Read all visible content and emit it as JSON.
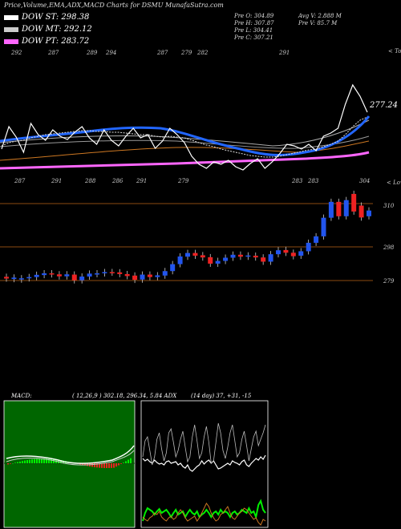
{
  "header": {
    "title": "Price,Volume,EMA,ADX,MACD Charts for DSMU MunafaSutra.com"
  },
  "legend": [
    {
      "label": "DOW ST: 298.38",
      "color": "#ffffff"
    },
    {
      "label": "DOW MT: 292.12",
      "color": "#cccccc"
    },
    {
      "label": "DOW PT: 283.72",
      "color": "#ff66ff"
    }
  ],
  "quote": {
    "open": "Pre O: 304.89",
    "high": "Pre H: 307.87",
    "low": "Pre L: 304.41",
    "close": "Pre C: 307.21",
    "avgvol": "Avg V: 2.888 M",
    "prevol": "Pre V: 85.7 M"
  },
  "top_panel": {
    "tops_label": "< Tops",
    "lows_label": "< Lows",
    "last_value": "277.24",
    "top_labels": [
      "292",
      "287",
      "289",
      "294",
      "287",
      "279",
      "282",
      "291"
    ],
    "low_labels": [
      "287",
      "291",
      "288",
      "286",
      "291",
      "279",
      "283",
      "283",
      "304"
    ]
  },
  "price_axis": {
    "ticks": [
      "310",
      "298",
      "279"
    ]
  },
  "macd": {
    "label": "MACD:",
    "values": "( 12,26,9 ) 302.18, 296.34, 5.84 ADX",
    "adx_values": "(14 day) 37, +31, -15"
  },
  "colors": {
    "up": "#2255ee",
    "down": "#ee2222",
    "ema_fast": "#2266ff",
    "ema_pt": "#ff66ff",
    "grid": "#8b4a10",
    "green": "#00ee00",
    "orange": "#cc7722"
  },
  "chart_data": [
    {
      "type": "line",
      "title": "",
      "series": [
        {
          "name": "",
          "values": [
            186,
            158,
            171,
            190,
            154,
            168,
            175,
            162,
            170,
            174,
            165,
            158,
            172,
            180,
            162,
            175,
            182,
            170,
            160,
            172,
            168,
            185,
            176,
            160,
            168,
            178,
            195,
            205,
            210,
            202,
            205,
            200,
            208,
            212,
            204,
            198,
            210,
            202,
            192,
            180,
            182,
            186,
            180,
            188,
            170,
            166,
            160,
            130,
            106,
            120,
            140
          ]
        },
        {
          "name": "",
          "values": [
            182,
            178,
            176,
            175,
            172,
            170,
            168,
            167,
            166,
            165,
            164,
            163,
            163,
            164,
            164,
            165,
            165,
            166,
            167,
            168,
            168,
            170,
            171,
            170,
            171,
            172,
            175,
            178,
            181,
            183,
            186,
            188,
            190,
            192,
            194,
            195,
            196,
            196,
            195,
            193,
            191,
            189,
            187,
            186,
            183,
            180,
            176,
            168,
            158,
            150,
            146
          ]
        }
      ]
    },
    {
      "type": "candlestick",
      "title": "",
      "axis_ticks": [
        310,
        298,
        279
      ],
      "candles": [
        {
          "o": 280.5,
          "c": 279.8
        },
        {
          "o": 279.6,
          "c": 280.2
        },
        {
          "o": 279.4,
          "c": 279.9
        },
        {
          "o": 279.9,
          "c": 280.4
        },
        {
          "o": 280.4,
          "c": 281.3
        },
        {
          "o": 281.2,
          "c": 281.9
        },
        {
          "o": 281.9,
          "c": 281.5
        },
        {
          "o": 281.5,
          "c": 280.7
        },
        {
          "o": 280.7,
          "c": 281.5
        },
        {
          "o": 281.4,
          "c": 279.1
        },
        {
          "o": 279.1,
          "c": 280.6
        },
        {
          "o": 280.6,
          "c": 281.8
        },
        {
          "o": 281.6,
          "c": 281.9
        },
        {
          "o": 281.9,
          "c": 282.4
        },
        {
          "o": 282.4,
          "c": 282.2
        },
        {
          "o": 282.3,
          "c": 281.6
        },
        {
          "o": 281.6,
          "c": 280.8
        },
        {
          "o": 281.0,
          "c": 279.3
        },
        {
          "o": 279.4,
          "c": 281.4
        },
        {
          "o": 281.4,
          "c": 280.4
        },
        {
          "o": 280.4,
          "c": 281.1
        },
        {
          "o": 281.0,
          "c": 282.8
        },
        {
          "o": 282.8,
          "c": 285.6
        },
        {
          "o": 285.6,
          "c": 288.7
        },
        {
          "o": 288.6,
          "c": 290.1
        },
        {
          "o": 290.1,
          "c": 289.0
        },
        {
          "o": 289.2,
          "c": 288.3
        },
        {
          "o": 288.4,
          "c": 285.8
        },
        {
          "o": 285.8,
          "c": 286.9
        },
        {
          "o": 286.9,
          "c": 288.2
        },
        {
          "o": 288.2,
          "c": 289.4
        },
        {
          "o": 289.4,
          "c": 288.6
        },
        {
          "o": 288.6,
          "c": 289.1
        },
        {
          "o": 289.0,
          "c": 288.3
        },
        {
          "o": 288.3,
          "c": 286.6
        },
        {
          "o": 286.6,
          "c": 289.6
        },
        {
          "o": 289.6,
          "c": 291.2
        },
        {
          "o": 291.3,
          "c": 290.2
        },
        {
          "o": 290.2,
          "c": 288.8
        },
        {
          "o": 289.0,
          "c": 290.8
        },
        {
          "o": 290.8,
          "c": 294.2
        },
        {
          "o": 294.2,
          "c": 296.8
        },
        {
          "o": 296.8,
          "c": 304.3
        },
        {
          "o": 304.3,
          "c": 310.7
        },
        {
          "o": 310.7,
          "c": 304.9
        },
        {
          "o": 304.9,
          "c": 311.4
        },
        {
          "o": 313.9,
          "c": 306.8
        },
        {
          "o": 309.2,
          "c": 304.4
        },
        {
          "o": 304.9,
          "c": 307.2
        }
      ]
    },
    {
      "type": "line",
      "title": "",
      "series": [
        {
          "name": "",
          "values": [
            572,
            575,
            573,
            576,
            578,
            574,
            577,
            579,
            578,
            580,
            576,
            575,
            578,
            577,
            576,
            580,
            578,
            582,
            584,
            580,
            586,
            588,
            585,
            582,
            580,
            575,
            579,
            576,
            574,
            578,
            575,
            580,
            585,
            584,
            582,
            580,
            578,
            580,
            575,
            577,
            578,
            580,
            576,
            574,
            580,
            582,
            578,
            575,
            572,
            574,
            570,
            573,
            568
          ]
        }
      ]
    },
    {
      "type": "line",
      "title": "",
      "series": [
        {
          "name": "",
          "values": [
            570,
            550,
            545,
            562,
            580,
            570,
            548,
            540,
            560,
            575,
            565,
            540,
            535,
            552,
            570,
            562,
            548,
            538,
            558,
            576,
            570,
            545,
            530,
            550,
            572,
            565,
            545,
            532,
            552,
            578,
            575,
            552,
            528,
            540,
            562,
            572,
            558,
            540,
            530,
            550,
            570,
            565,
            548,
            538,
            556,
            575,
            560,
            545,
            538,
            556,
            548,
            540,
            530
          ]
        },
        {
          "name": "",
          "values": [
            650,
            640,
            634,
            636,
            638,
            642,
            638,
            635,
            640,
            638,
            636,
            640,
            645,
            640,
            636,
            642,
            640,
            638,
            645,
            640,
            636,
            640,
            642,
            638,
            645,
            642,
            640,
            636,
            640,
            645,
            640,
            638,
            642,
            636,
            640,
            638,
            640,
            645,
            640,
            638,
            642,
            640,
            636,
            638,
            640,
            634,
            640,
            638,
            645,
            630,
            625,
            636,
            640
          ]
        },
        {
          "name": "",
          "values": [
            645,
            648,
            650,
            646,
            644,
            640,
            642,
            638,
            645,
            648,
            650,
            646,
            644,
            648,
            646,
            640,
            636,
            640,
            646,
            650,
            648,
            646,
            644,
            650,
            646,
            640,
            634,
            628,
            632,
            640,
            646,
            650,
            648,
            642,
            640,
            636,
            632,
            640,
            646,
            648,
            644,
            640,
            638,
            634,
            636,
            640,
            644,
            648,
            646,
            652,
            655,
            648,
            650
          ]
        }
      ]
    }
  ]
}
